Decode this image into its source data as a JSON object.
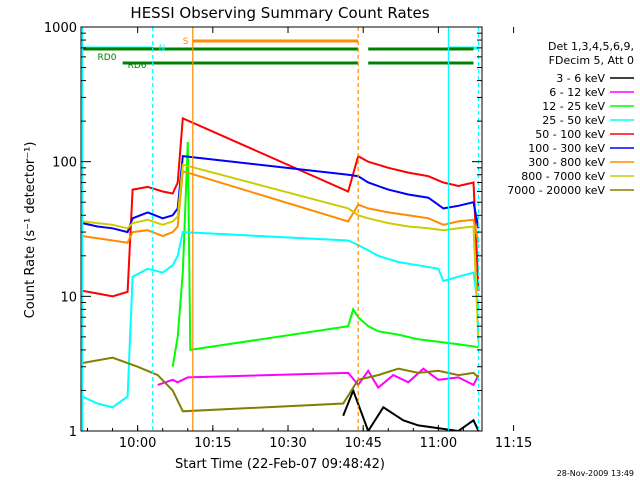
{
  "chart_data": {
    "type": "line",
    "title": "HESSI Observing Summary Count Rates",
    "xlabel": "Start Time (22-Feb-07 09:48:42)",
    "ylabel": "Count Rate (s⁻¹ detector⁻¹)",
    "ylog": true,
    "ylim": [
      1,
      1000
    ],
    "xlim_minutes": [
      48.7,
      128.7
    ],
    "x_tick_labels": [
      "10:00",
      "10:15",
      "10:30",
      "10:45",
      "11:00",
      "11:15"
    ],
    "x_tick_minutes": [
      60,
      75,
      90,
      105,
      120,
      135
    ],
    "y_tick_labels": [
      "1",
      "10",
      "100",
      "1000"
    ],
    "y_tick_values": [
      1,
      10,
      100,
      1000
    ],
    "legend_header": [
      "Det 1,3,4,5,6,9,",
      "FDecim 5, Att 0"
    ],
    "footer_date": "28-Nov-2009 13:49",
    "status_labels": {
      "rd0": "RD0",
      "rd6": "RD6",
      "saa": "S",
      "night": "N"
    },
    "series": [
      {
        "name": "3 - 6 keV",
        "color": "#000000",
        "x": [
          49,
          56,
          67,
          72,
          101,
          103,
          106,
          109,
          113,
          116,
          124,
          127,
          128
        ],
        "y": [
          null,
          null,
          null,
          null,
          1.3,
          2.0,
          1.0,
          1.5,
          1.2,
          1.1,
          1.0,
          1.2,
          1.0
        ]
      },
      {
        "name": "6 - 12 keV",
        "color": "#ff00ff",
        "x": [
          64,
          67,
          68,
          70,
          102,
          104,
          106,
          108,
          111,
          114,
          117,
          120,
          124,
          127,
          128
        ],
        "y": [
          2.2,
          2.4,
          2.3,
          2.5,
          2.7,
          2.2,
          2.8,
          2.1,
          2.6,
          2.3,
          2.9,
          2.4,
          2.5,
          2.2,
          2.6
        ]
      },
      {
        "name": "12 - 25 keV",
        "color": "#00ff00",
        "x": [
          67,
          68,
          69,
          70,
          70.5,
          102,
          103,
          104,
          106,
          108,
          112,
          116,
          120,
          124,
          126,
          128
        ],
        "y": [
          3.0,
          5.0,
          15.0,
          140.0,
          4.0,
          6.0,
          8.0,
          7.0,
          6.0,
          5.5,
          5.2,
          4.8,
          4.6,
          4.4,
          4.3,
          4.2
        ]
      },
      {
        "name": "25 - 50 keV",
        "color": "#00ffff",
        "x": [
          49,
          52,
          55,
          58,
          59,
          62,
          65,
          67,
          68,
          69,
          102,
          104,
          106,
          108,
          112,
          116,
          120,
          121,
          124,
          127,
          128
        ],
        "y": [
          1.8,
          1.6,
          1.5,
          1.8,
          14.0,
          16.0,
          15.0,
          17.0,
          20.0,
          30.0,
          26.0,
          24.0,
          22.0,
          20.0,
          18.0,
          17.0,
          16.0,
          13.0,
          14.0,
          15.0,
          8.0
        ]
      },
      {
        "name": "50 - 100 keV",
        "color": "#ff0000",
        "x": [
          49,
          52,
          55,
          58,
          59,
          62,
          65,
          67,
          68,
          69,
          102,
          104,
          106,
          110,
          114,
          118,
          121,
          124,
          127,
          128
        ],
        "y": [
          11.0,
          10.5,
          10.0,
          10.8,
          62.0,
          65.0,
          60.0,
          58.0,
          70.0,
          210.0,
          60.0,
          110.0,
          100.0,
          90.0,
          83.0,
          78.0,
          70.0,
          66.0,
          70.0,
          11.0
        ]
      },
      {
        "name": "100 - 300 keV",
        "color": "#0000ff",
        "x": [
          49,
          52,
          55,
          58,
          59,
          62,
          65,
          67,
          68,
          69,
          102,
          104,
          106,
          110,
          114,
          118,
          121,
          124,
          127,
          128
        ],
        "y": [
          35.0,
          33.0,
          32.0,
          30.0,
          38.0,
          42.0,
          38.0,
          40.0,
          45.0,
          110.0,
          80.0,
          78.0,
          70.0,
          62.0,
          57.0,
          54.0,
          45.0,
          47.0,
          50.0,
          32.0
        ]
      },
      {
        "name": "300 - 800 keV",
        "color": "#ff8c00",
        "x": [
          49,
          52,
          55,
          58,
          59,
          62,
          65,
          67,
          68,
          69,
          102,
          104,
          106,
          110,
          114,
          118,
          121,
          124,
          127,
          128
        ],
        "y": [
          28.0,
          27.0,
          26.0,
          25.0,
          30.0,
          31.0,
          28.0,
          30.0,
          33.0,
          85.0,
          36.0,
          48.0,
          45.0,
          42.0,
          40.0,
          38.0,
          34.0,
          36.0,
          37.0,
          25.0
        ]
      },
      {
        "name": "800 - 7000 keV",
        "color": "#cccc00",
        "x": [
          49,
          52,
          55,
          58,
          59,
          62,
          65,
          67,
          68,
          69,
          102,
          104,
          106,
          110,
          114,
          118,
          121,
          124,
          127,
          128
        ],
        "y": [
          36.0,
          35.0,
          34.0,
          32.0,
          35.0,
          37.0,
          34.0,
          36.0,
          39.0,
          95.0,
          45.0,
          40.0,
          38.0,
          35.0,
          33.0,
          32.0,
          31.0,
          32.0,
          33.0,
          4.5
        ]
      },
      {
        "name": "7000 - 20000 keV",
        "color": "#808000",
        "x": [
          49,
          55,
          60,
          64,
          67,
          69,
          101,
          104,
          108,
          112,
          116,
          120,
          124,
          127,
          128
        ],
        "y": [
          3.2,
          3.5,
          3.0,
          2.6,
          2.0,
          1.4,
          1.6,
          2.4,
          2.6,
          2.9,
          2.7,
          2.8,
          2.6,
          2.7,
          2.5
        ]
      }
    ],
    "state_lines": [
      {
        "label": "S",
        "color": "#ff8c00",
        "segments": [
          [
            71,
            104
          ]
        ]
      },
      {
        "label": "N",
        "color": "#00ffff",
        "segments": [
          [
            49,
            63
          ],
          [
            122,
            128
          ]
        ]
      },
      {
        "label": "RD0",
        "color": "#008000",
        "segments": [
          [
            49,
            104
          ],
          [
            106,
            127
          ]
        ]
      },
      {
        "label": "RD6",
        "color": "#008000",
        "segments": [
          [
            57,
            104
          ],
          [
            106,
            127
          ]
        ]
      }
    ]
  }
}
